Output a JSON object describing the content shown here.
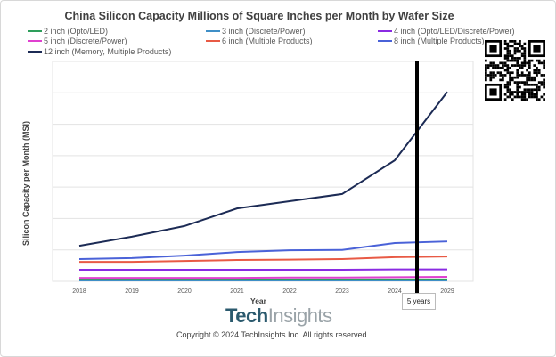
{
  "chart_data": {
    "type": "line",
    "title": "China Silicon Capacity Millions of Square Inches per Month by Wafer Size",
    "xlabel": "Year",
    "ylabel": "Silicon Capacity per Month (MSI)",
    "categories": [
      "2018",
      "2019",
      "2020",
      "2021",
      "2022",
      "2023",
      "2024",
      "2029"
    ],
    "ylim": [
      0,
      7
    ],
    "y_tick_labels_shown": false,
    "grid": true,
    "legend": "top",
    "series": [
      {
        "name": "2 inch (Opto/LED)",
        "color": "#2e9e5b",
        "values": [
          0.06,
          0.06,
          0.06,
          0.06,
          0.06,
          0.06,
          0.06,
          0.06
        ]
      },
      {
        "name": "3 inch (Discrete/Power)",
        "color": "#3f8fc7",
        "values": [
          0.03,
          0.03,
          0.03,
          0.03,
          0.03,
          0.03,
          0.03,
          0.03
        ]
      },
      {
        "name": "4 inch (Opto/LED/Discrete/Power)",
        "color": "#8a2be2",
        "values": [
          0.37,
          0.37,
          0.37,
          0.37,
          0.37,
          0.37,
          0.38,
          0.38
        ]
      },
      {
        "name": "5 inch (Discrete/Power)",
        "color": "#e040d0",
        "values": [
          0.11,
          0.11,
          0.11,
          0.11,
          0.12,
          0.12,
          0.13,
          0.14
        ]
      },
      {
        "name": "6 inch (Multiple Products)",
        "color": "#e85a45",
        "values": [
          0.62,
          0.62,
          0.65,
          0.68,
          0.69,
          0.71,
          0.77,
          0.79
        ]
      },
      {
        "name": "8 inch (Multiple Products)",
        "color": "#4a62d8",
        "values": [
          0.71,
          0.74,
          0.82,
          0.93,
          0.99,
          1.0,
          1.22,
          1.27
        ]
      },
      {
        "name": "12 inch (Memory, Multiple Products)",
        "color": "#1c2b55",
        "values": [
          1.13,
          1.42,
          1.76,
          2.32,
          2.55,
          2.78,
          3.85,
          6.03
        ]
      }
    ],
    "annotation": {
      "label": "5 years",
      "between": [
        "2024",
        "2029"
      ]
    }
  },
  "footer": {
    "logo_part1": "Tech",
    "logo_part2": "Insights",
    "copyright": "Copyright © 2024 TechInsights Inc.  All rights reserved."
  }
}
